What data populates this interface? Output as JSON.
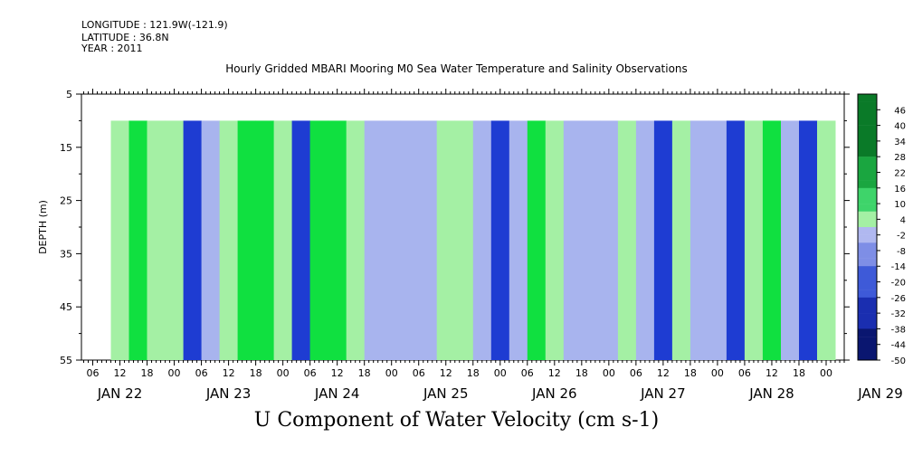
{
  "header": {
    "longitude": "LONGITUDE : 121.9W(-121.9)",
    "latitude": "LATITUDE : 36.8N",
    "year": "YEAR : 2011"
  },
  "chart_data": {
    "type": "heatmap",
    "title": "Hourly Gridded MBARI Mooring M0 Sea Water Temperature and Salinity Observations",
    "xlabel": "U Component of Water Velocity (cm s-1)",
    "ylabel": "DEPTH (m)",
    "ylim": [
      5,
      55
    ],
    "yticks": [
      "5",
      "15",
      "25",
      "35",
      "45",
      "55"
    ],
    "data_depth_range": [
      10,
      55
    ],
    "hour_tick_labels": [
      "06",
      "12",
      "18",
      "00",
      "06",
      "12",
      "18",
      "00",
      "06",
      "12",
      "18",
      "00",
      "06",
      "12",
      "18",
      "00",
      "06",
      "12",
      "18",
      "00",
      "06",
      "12",
      "18",
      "00",
      "06",
      "12",
      "18",
      "00",
      "06",
      "12",
      "18",
      "00"
    ],
    "day_labels": [
      "JAN 22",
      "JAN 23",
      "JAN 24",
      "JAN 25",
      "JAN 26",
      "JAN 27",
      "JAN 28",
      "JAN 29"
    ],
    "colorbar_labels": [
      "46",
      "40",
      "34",
      "28",
      "22",
      "16",
      "10",
      "4",
      "-2",
      "-8",
      "-14",
      "-20",
      "-26",
      "-32",
      "-38",
      "-44",
      "-50"
    ],
    "colors": {
      "strong_negative": "#1e3cd2",
      "weak_negative": "#a8b4ee",
      "weak_positive": "#a4f0a4",
      "strong_positive": "#10e040"
    },
    "u_profile_by_time": [
      {
        "time": "JAN 22 10:00",
        "u": 6
      },
      {
        "time": "JAN 22 14:00",
        "u": 10
      },
      {
        "time": "JAN 22 18:00",
        "u": 8
      },
      {
        "time": "JAN 22 22:00",
        "u": 6
      },
      {
        "time": "JAN 23 02:00",
        "u": -14
      },
      {
        "time": "JAN 23 06:00",
        "u": -10
      },
      {
        "time": "JAN 23 10:00",
        "u": 6
      },
      {
        "time": "JAN 23 14:00",
        "u": 14
      },
      {
        "time": "JAN 23 18:00",
        "u": 12
      },
      {
        "time": "JAN 23 22:00",
        "u": 8
      },
      {
        "time": "JAN 24 02:00",
        "u": -20
      },
      {
        "time": "JAN 24 06:00",
        "u": 14
      },
      {
        "time": "JAN 24 10:00",
        "u": 12
      },
      {
        "time": "JAN 24 14:00",
        "u": 8
      },
      {
        "time": "JAN 24 18:00",
        "u": -6
      },
      {
        "time": "JAN 24 22:00",
        "u": -10
      },
      {
        "time": "JAN 25 02:00",
        "u": -12
      },
      {
        "time": "JAN 25 06:00",
        "u": -6
      },
      {
        "time": "JAN 25 10:00",
        "u": 8
      },
      {
        "time": "JAN 25 14:00",
        "u": 6
      },
      {
        "time": "JAN 25 18:00",
        "u": -8
      },
      {
        "time": "JAN 25 22:00",
        "u": -16
      },
      {
        "time": "JAN 26 02:00",
        "u": -8
      },
      {
        "time": "JAN 26 06:00",
        "u": 10
      },
      {
        "time": "JAN 26 10:00",
        "u": 8
      },
      {
        "time": "JAN 26 14:00",
        "u": -8
      },
      {
        "time": "JAN 26 18:00",
        "u": -10
      },
      {
        "time": "JAN 26 22:00",
        "u": -4
      },
      {
        "time": "JAN 27 02:00",
        "u": 6
      },
      {
        "time": "JAN 27 06:00",
        "u": -10
      },
      {
        "time": "JAN 27 10:00",
        "u": -14
      },
      {
        "time": "JAN 27 14:00",
        "u": 6
      },
      {
        "time": "JAN 27 18:00",
        "u": -6
      },
      {
        "time": "JAN 27 22:00",
        "u": -10
      },
      {
        "time": "JAN 28 02:00",
        "u": -16
      },
      {
        "time": "JAN 28 06:00",
        "u": 8
      },
      {
        "time": "JAN 28 10:00",
        "u": 10
      },
      {
        "time": "JAN 28 14:00",
        "u": -12
      },
      {
        "time": "JAN 28 18:00",
        "u": -14
      },
      {
        "time": "JAN 28 22:00",
        "u": 6
      }
    ]
  }
}
